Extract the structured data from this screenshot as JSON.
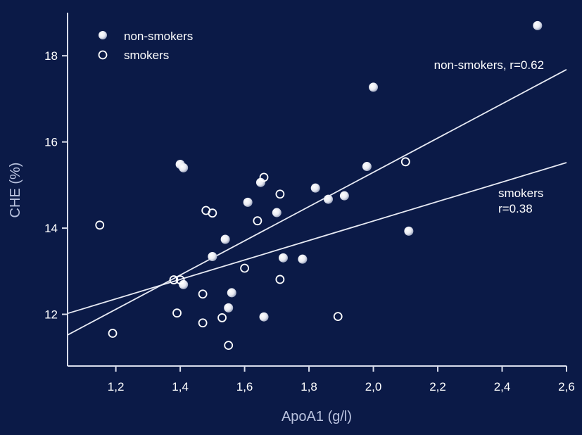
{
  "colors": {
    "background": "#0b1a47",
    "axis": "#d8dceb",
    "text": "#ffffff",
    "ylabel": "#b9c2de",
    "marker_fill": "#ffffff",
    "marker_outline": "#ffffff"
  },
  "chart_data": {
    "type": "scatter",
    "title": "",
    "xlabel": "ApoA1 (g/l)",
    "ylabel": "CHE (%)",
    "xlim": [
      1.05,
      2.6
    ],
    "ylim": [
      10.8,
      19.0
    ],
    "x_ticks": [
      1.2,
      1.4,
      1.6,
      1.8,
      2.0,
      2.2,
      2.4,
      2.6
    ],
    "x_tick_labels": [
      "1,2",
      "1,4",
      "1,6",
      "1,8",
      "2,0",
      "2,2",
      "2,4",
      "2,6"
    ],
    "y_ticks": [
      12,
      14,
      16,
      18
    ],
    "y_tick_labels": [
      "12",
      "14",
      "16",
      "18"
    ],
    "grid": false,
    "legend_position": "top-left",
    "series": [
      {
        "name": "non-smokers",
        "marker": "filled-circle",
        "points": [
          [
            1.4,
            15.48
          ],
          [
            1.41,
            15.4
          ],
          [
            1.61,
            14.6
          ],
          [
            1.65,
            15.06
          ],
          [
            1.54,
            13.74
          ],
          [
            1.5,
            13.34
          ],
          [
            1.7,
            14.36
          ],
          [
            1.72,
            13.31
          ],
          [
            1.78,
            13.28
          ],
          [
            1.82,
            14.93
          ],
          [
            1.86,
            14.67
          ],
          [
            1.91,
            14.75
          ],
          [
            1.98,
            15.43
          ],
          [
            2.0,
            17.27
          ],
          [
            2.11,
            13.93
          ],
          [
            2.51,
            18.7
          ],
          [
            1.41,
            12.69
          ],
          [
            1.56,
            12.5
          ],
          [
            1.55,
            12.15
          ],
          [
            1.66,
            11.94
          ]
        ]
      },
      {
        "name": "smokers",
        "marker": "open-circle",
        "points": [
          [
            1.15,
            14.07
          ],
          [
            1.19,
            11.56
          ],
          [
            1.38,
            12.8
          ],
          [
            1.39,
            12.03
          ],
          [
            1.4,
            12.8
          ],
          [
            1.47,
            12.47
          ],
          [
            1.47,
            11.8
          ],
          [
            1.48,
            14.41
          ],
          [
            1.5,
            14.35
          ],
          [
            1.53,
            11.92
          ],
          [
            1.55,
            11.28
          ],
          [
            1.6,
            13.07
          ],
          [
            1.64,
            14.17
          ],
          [
            1.66,
            15.18
          ],
          [
            1.71,
            14.79
          ],
          [
            1.71,
            12.81
          ],
          [
            1.89,
            11.95
          ],
          [
            2.1,
            15.54
          ]
        ]
      }
    ],
    "regression_lines": [
      {
        "series": "non-smokers",
        "x": [
          1.05,
          2.6
        ],
        "y": [
          11.52,
          17.68
        ]
      },
      {
        "series": "smokers",
        "x": [
          1.05,
          2.6
        ],
        "y": [
          12.02,
          15.52
        ]
      }
    ],
    "annotations": {
      "non_smokers": "non-smokers, r=0.62",
      "smokers_line1": "smokers",
      "smokers_line2": "r=0.38"
    },
    "legend": [
      {
        "label": "non-smokers",
        "marker": "filled-circle"
      },
      {
        "label": "smokers",
        "marker": "open-circle"
      }
    ]
  }
}
